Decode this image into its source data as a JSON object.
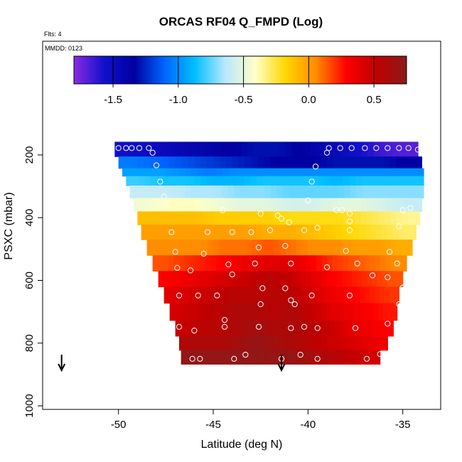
{
  "chart_data": {
    "type": "heatmap",
    "title": "ORCAS RF04 Q_FMPD (Log)",
    "notes": {
      "flights": "Flts: 4",
      "date": "MMDD: 0123"
    },
    "xlabel": "Latitude (deg N)",
    "ylabel": "PSXC (mbar)",
    "xlim": [
      -54,
      -33
    ],
    "ylim": [
      1000,
      0
    ],
    "x_ticks": [
      -50,
      -45,
      -40,
      -35
    ],
    "y_ticks": [
      200,
      400,
      600,
      800,
      1000
    ],
    "colorbar": {
      "range": [
        -1.8,
        0.75
      ],
      "ticks": [
        -1.5,
        -1.0,
        -0.5,
        0.0,
        0.5
      ],
      "tick_labels": [
        "-1.5",
        "-1.0",
        "-0.5",
        "0.0",
        "0.5"
      ],
      "colors": [
        "#8a2be2",
        "#1010cc",
        "#0000a0",
        "#0066ff",
        "#00bfff",
        "#b8e8ff",
        "#ffffc8",
        "#ffd700",
        "#ff8c00",
        "#ff0000",
        "#c00000",
        "#8b1a1a"
      ]
    },
    "arrows_at_latitude": [
      -53,
      -41.4
    ],
    "rows": [
      {
        "p": 180,
        "x0": -50.2,
        "x1": -34.2,
        "v": [
          -1.55,
          -1.5,
          -1.45,
          -1.4,
          -1.35,
          -1.3,
          -1.3,
          -1.35,
          -1.45,
          -1.55,
          -1.65,
          -1.7
        ]
      },
      {
        "p": 230,
        "x0": -50.0,
        "x1": -34.0,
        "v": [
          -1.05,
          -1.1,
          -1.15,
          -1.2,
          -1.25,
          -1.3,
          -1.35,
          -1.35,
          -1.3,
          -1.3,
          -1.3,
          -1.35
        ]
      },
      {
        "p": 255,
        "x0": -49.8,
        "x1": -33.9,
        "v": [
          -0.95,
          -0.95,
          -1.0,
          -1.05,
          -1.0,
          -1.0,
          -1.0,
          -1.0,
          -1.0,
          -1.0,
          -1.0,
          -1.0
        ]
      },
      {
        "p": 280,
        "x0": -49.6,
        "x1": -33.9,
        "v": [
          -0.8,
          -0.85,
          -0.85,
          -0.9,
          -0.9,
          -0.85,
          -0.85,
          -0.85,
          -0.9,
          -0.85,
          -0.85,
          -0.85
        ]
      },
      {
        "p": 315,
        "x0": -49.4,
        "x1": -33.9,
        "v": [
          -0.6,
          -0.6,
          -0.65,
          -0.65,
          -0.7,
          -0.7,
          -0.75,
          -0.75,
          -0.75,
          -0.7,
          -0.7,
          -0.7
        ]
      },
      {
        "p": 360,
        "x0": -49.2,
        "x1": -34.0,
        "v": [
          -0.45,
          -0.4,
          -0.4,
          -0.45,
          -0.5,
          -0.5,
          -0.55,
          -0.55,
          -0.5,
          -0.5,
          -0.55,
          -0.6
        ]
      },
      {
        "p": 400,
        "x0": -49.0,
        "x1": -34.1,
        "v": [
          -0.1,
          -0.1,
          -0.1,
          -0.15,
          -0.15,
          -0.15,
          -0.2,
          -0.2,
          -0.2,
          -0.25,
          -0.3,
          -0.35
        ]
      },
      {
        "p": 445,
        "x0": -48.8,
        "x1": -34.3,
        "v": [
          0.0,
          0.0,
          0.0,
          0.0,
          0.0,
          -0.05,
          -0.05,
          -0.1,
          -0.15,
          -0.2,
          -0.25,
          -0.3
        ]
      },
      {
        "p": 495,
        "x0": -48.5,
        "x1": -34.5,
        "v": [
          0.05,
          0.05,
          0.05,
          0.1,
          0.1,
          0.15,
          0.1,
          0.05,
          0.05,
          0.0,
          0.0,
          -0.05
        ]
      },
      {
        "p": 545,
        "x0": -48.2,
        "x1": -34.8,
        "v": [
          0.15,
          0.2,
          0.25,
          0.3,
          0.35,
          0.4,
          0.4,
          0.3,
          0.2,
          0.15,
          0.1,
          0.05
        ]
      },
      {
        "p": 595,
        "x0": -47.9,
        "x1": -35.0,
        "v": [
          0.3,
          0.35,
          0.4,
          0.45,
          0.5,
          0.55,
          0.5,
          0.4,
          0.3,
          0.25,
          0.2,
          0.15
        ]
      },
      {
        "p": 645,
        "x0": -47.6,
        "x1": -35.2,
        "v": [
          0.4,
          0.45,
          0.5,
          0.55,
          0.55,
          0.55,
          0.55,
          0.45,
          0.35,
          0.3,
          0.25,
          0.2
        ]
      },
      {
        "p": 700,
        "x0": -47.3,
        "x1": -35.3,
        "v": [
          0.45,
          0.5,
          0.55,
          0.6,
          0.6,
          0.55,
          0.6,
          0.5,
          0.4,
          0.35,
          0.3,
          0.25
        ]
      },
      {
        "p": 755,
        "x0": -47.0,
        "x1": -35.5,
        "v": [
          0.5,
          0.55,
          0.55,
          0.6,
          0.65,
          0.6,
          0.6,
          0.55,
          0.5,
          0.4,
          0.35,
          0.3
        ]
      },
      {
        "p": 800,
        "x0": -46.8,
        "x1": -35.8,
        "v": [
          0.6,
          0.6,
          0.6,
          0.65,
          0.7,
          0.65,
          0.6,
          0.55,
          0.5,
          0.45,
          0.4,
          0.35
        ]
      },
      {
        "p": 845,
        "x0": -46.7,
        "x1": -36.2,
        "v": [
          0.72,
          0.72,
          0.72,
          0.72,
          0.72,
          0.7,
          0.72,
          0.65,
          0.6,
          0.55,
          0.5,
          0.45
        ]
      }
    ],
    "points": [
      [
        -50.0,
        178
      ],
      [
        -49.6,
        178
      ],
      [
        -49.3,
        178
      ],
      [
        -48.9,
        178
      ],
      [
        -48.4,
        178
      ],
      [
        -48.2,
        193
      ],
      [
        -39.0,
        193
      ],
      [
        -38.9,
        178
      ],
      [
        -38.3,
        178
      ],
      [
        -37.7,
        178
      ],
      [
        -37.0,
        178
      ],
      [
        -36.4,
        178
      ],
      [
        -35.8,
        178
      ],
      [
        -35.2,
        178
      ],
      [
        -34.7,
        178
      ],
      [
        -34.2,
        183
      ],
      [
        -48.0,
        233
      ],
      [
        -39.6,
        237
      ],
      [
        -47.8,
        285
      ],
      [
        -39.8,
        285
      ],
      [
        -47.6,
        333
      ],
      [
        -40.0,
        345
      ],
      [
        -44.5,
        376
      ],
      [
        -38.5,
        376
      ],
      [
        -38.2,
        376
      ],
      [
        -35.0,
        376
      ],
      [
        -34.6,
        369
      ],
      [
        -37.8,
        387
      ],
      [
        -42.5,
        387
      ],
      [
        -41.6,
        393
      ],
      [
        -41.4,
        403
      ],
      [
        -37.8,
        412
      ],
      [
        -41.0,
        415
      ],
      [
        -47.2,
        446
      ],
      [
        -45.3,
        446
      ],
      [
        -44.0,
        446
      ],
      [
        -43.0,
        446
      ],
      [
        -42.0,
        440
      ],
      [
        -40.2,
        440
      ],
      [
        -39.5,
        432
      ],
      [
        -37.8,
        440
      ],
      [
        -35.2,
        428
      ],
      [
        -47.0,
        509
      ],
      [
        -42.6,
        495
      ],
      [
        -41.2,
        490
      ],
      [
        -45.5,
        515
      ],
      [
        -38.0,
        506
      ],
      [
        -35.7,
        509
      ],
      [
        -46.9,
        560
      ],
      [
        -44.2,
        549
      ],
      [
        -42.8,
        546
      ],
      [
        -40.9,
        546
      ],
      [
        -39.0,
        558
      ],
      [
        -37.4,
        546
      ],
      [
        -35.3,
        546
      ],
      [
        -46.2,
        568
      ],
      [
        -44.0,
        581
      ],
      [
        -36.6,
        584
      ],
      [
        -35.8,
        590
      ],
      [
        -46.8,
        648
      ],
      [
        -45.8,
        648
      ],
      [
        -44.8,
        648
      ],
      [
        -42.4,
        625
      ],
      [
        -41.2,
        625
      ],
      [
        -39.8,
        648
      ],
      [
        -37.8,
        648
      ],
      [
        -35.0,
        623
      ],
      [
        -42.5,
        676
      ],
      [
        -40.9,
        663
      ],
      [
        -40.7,
        676
      ],
      [
        -35.2,
        676
      ],
      [
        -46.8,
        748
      ],
      [
        -46.0,
        760
      ],
      [
        -44.4,
        726
      ],
      [
        -44.4,
        748
      ],
      [
        -42.6,
        748
      ],
      [
        -40.9,
        752
      ],
      [
        -40.2,
        748
      ],
      [
        -39.5,
        752
      ],
      [
        -37.5,
        752
      ],
      [
        -35.8,
        738
      ],
      [
        -46.1,
        850
      ],
      [
        -45.7,
        850
      ],
      [
        -43.9,
        850
      ],
      [
        -43.3,
        837
      ],
      [
        -41.4,
        850
      ],
      [
        -40.4,
        837
      ],
      [
        -39.5,
        850
      ],
      [
        -36.9,
        850
      ],
      [
        -36.2,
        835
      ]
    ]
  }
}
